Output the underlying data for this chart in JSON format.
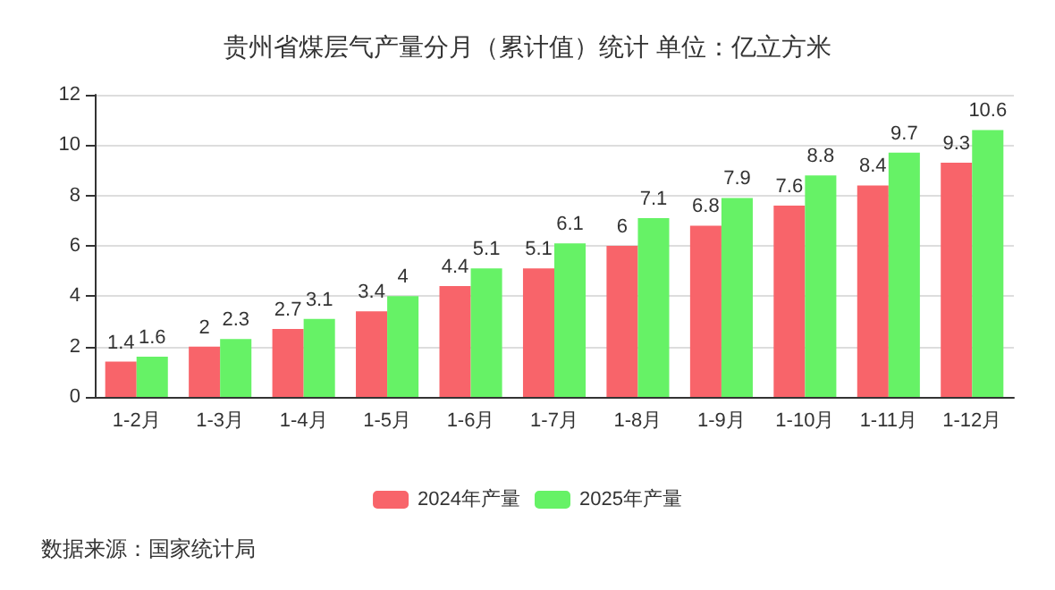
{
  "chart_data": {
    "type": "bar",
    "title": "贵州省煤层气产量分月（累计值）统计 单位：亿立方米",
    "categories": [
      "1-2月",
      "1-3月",
      "1-4月",
      "1-5月",
      "1-6月",
      "1-7月",
      "1-8月",
      "1-9月",
      "1-10月",
      "1-11月",
      "1-12月"
    ],
    "series": [
      {
        "name": "2024年产量",
        "color": "#f8646a",
        "values": [
          1.4,
          2,
          2.7,
          3.4,
          4.4,
          5.1,
          6,
          6.8,
          7.6,
          8.4,
          9.3
        ]
      },
      {
        "name": "2025年产量",
        "color": "#66f266",
        "values": [
          1.6,
          2.3,
          3.1,
          4,
          5.1,
          6.1,
          7.1,
          7.9,
          8.8,
          9.7,
          10.6
        ]
      }
    ],
    "ylim": [
      0,
      12
    ],
    "yticks": [
      0,
      2,
      4,
      6,
      8,
      10,
      12
    ],
    "grid": "y",
    "legend": "bottom",
    "data_labels": true,
    "annotations": [
      "数据来源：国家统计局"
    ]
  }
}
